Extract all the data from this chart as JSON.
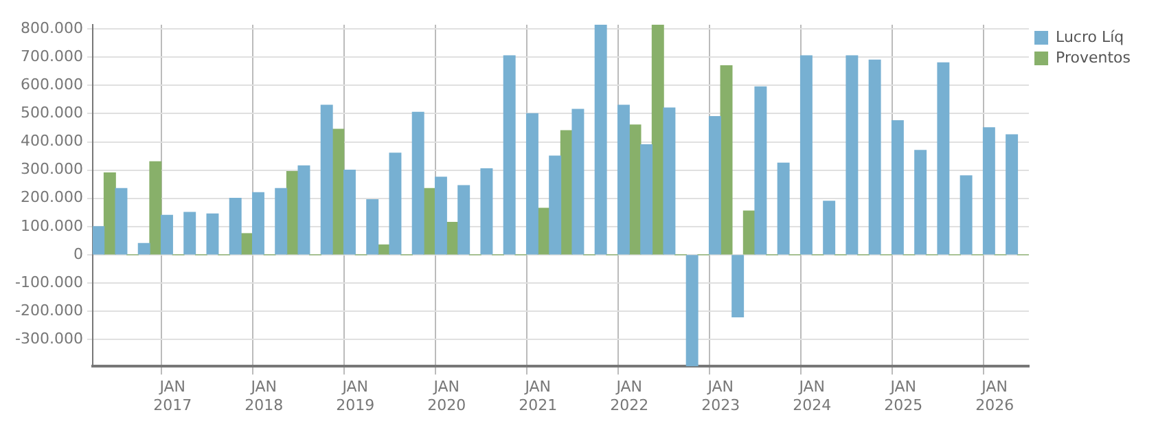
{
  "chart_data": {
    "type": "bar",
    "categories": [
      null,
      null,
      null,
      "JAN 2017",
      null,
      null,
      null,
      "JAN 2018",
      null,
      null,
      null,
      "JAN 2019",
      null,
      null,
      null,
      "JAN 2020",
      null,
      null,
      null,
      "JAN 2021",
      null,
      null,
      null,
      "JAN 2022",
      null,
      null,
      null,
      "JAN 2023",
      null,
      null,
      null,
      "JAN 2024",
      null,
      null,
      null,
      "JAN 2025",
      null,
      null,
      null,
      "JAN 2026",
      null
    ],
    "series": [
      {
        "name": "Lucro Líq",
        "color": "#77b0d2",
        "values": [
          100000,
          235000,
          40000,
          140000,
          150000,
          145000,
          200000,
          220000,
          235000,
          315000,
          530000,
          300000,
          195000,
          360000,
          505000,
          275000,
          245000,
          305000,
          705000,
          500000,
          350000,
          515000,
          815000,
          530000,
          390000,
          520000,
          -395000,
          490000,
          -220000,
          595000,
          325000,
          705000,
          190000,
          705000,
          690000,
          475000,
          370000,
          680000,
          280000,
          450000,
          425000
        ]
      },
      {
        "name": "Proventos",
        "color": "#88b06a",
        "values": [
          290000,
          0,
          330000,
          0,
          0,
          0,
          75000,
          0,
          295000,
          0,
          445000,
          0,
          35000,
          0,
          235000,
          115000,
          0,
          0,
          0,
          165000,
          440000,
          0,
          0,
          460000,
          815000,
          0,
          0,
          670000,
          155000,
          0,
          0,
          0,
          0,
          0,
          0,
          0,
          0,
          0,
          0,
          0,
          0
        ]
      }
    ],
    "ylim": [
      -395000,
      815000
    ],
    "yticks": [
      {
        "value": -300000,
        "label": "-300.000"
      },
      {
        "value": -200000,
        "label": "-200.000"
      },
      {
        "value": -100000,
        "label": "-100.000"
      },
      0,
      {
        "value": 100000,
        "label": "100.000"
      },
      {
        "value": 200000,
        "label": "200.000"
      },
      {
        "value": 300000,
        "label": "300.000"
      },
      {
        "value": 400000,
        "label": "400.000"
      },
      {
        "value": 500000,
        "label": "500.000"
      },
      {
        "value": 600000,
        "label": "600.000"
      },
      {
        "value": 700000,
        "label": "700.000"
      },
      {
        "value": 800000,
        "label": "800.000"
      }
    ],
    "grid": true,
    "legend": "top right"
  }
}
